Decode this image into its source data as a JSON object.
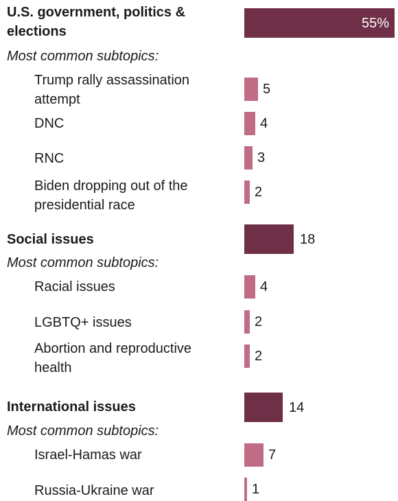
{
  "chart_data": {
    "type": "bar",
    "orientation": "horizontal",
    "value_suffix_first": "%",
    "colors": {
      "main": "#6e2f47",
      "sub": "#c06c85"
    },
    "groups": [
      {
        "label": "U.S. government, politics & elections",
        "value": 55,
        "note": "Most common subtopics:",
        "subtopics": [
          {
            "label": "Trump rally assassination attempt",
            "value": 5
          },
          {
            "label": "DNC",
            "value": 4
          },
          {
            "label": "RNC",
            "value": 3
          },
          {
            "label": "Biden dropping out of the presidential race",
            "value": 2
          }
        ]
      },
      {
        "label": "Social issues",
        "value": 18,
        "note": "Most common subtopics:",
        "subtopics": [
          {
            "label": "Racial issues",
            "value": 4
          },
          {
            "label": "LGBTQ+ issues",
            "value": 2
          },
          {
            "label": "Abortion and reproductive health",
            "value": 2
          }
        ]
      },
      {
        "label": "International issues",
        "value": 14,
        "note": "Most common subtopics:",
        "subtopics": [
          {
            "label": "Israel-Hamas war",
            "value": 7
          },
          {
            "label": "Russia-Ukraine war",
            "value": 1
          }
        ]
      }
    ]
  }
}
